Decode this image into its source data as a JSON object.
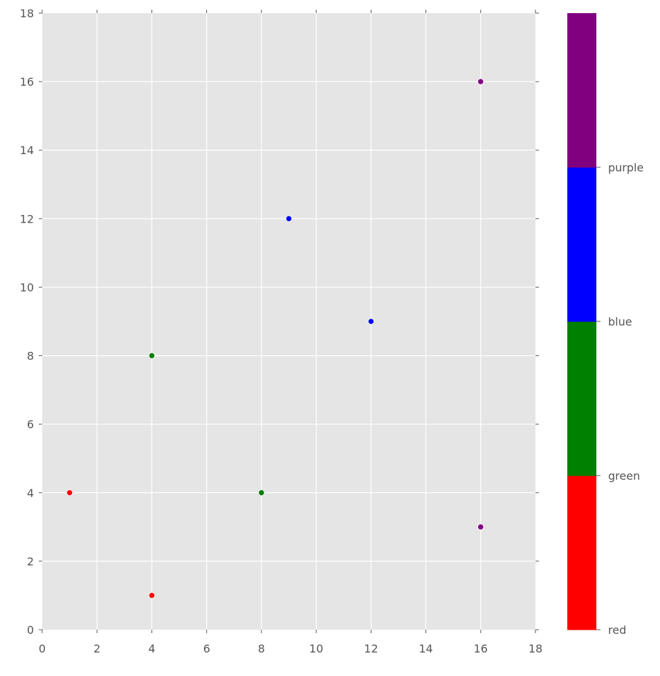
{
  "chart_data": {
    "type": "scatter",
    "title": "",
    "xlabel": "",
    "ylabel": "",
    "xlim": [
      0,
      18
    ],
    "ylim": [
      0,
      18
    ],
    "grid": true,
    "x_ticks": [
      0,
      2,
      4,
      6,
      8,
      10,
      12,
      14,
      16,
      18
    ],
    "y_ticks": [
      0,
      2,
      4,
      6,
      8,
      10,
      12,
      14,
      16,
      18
    ],
    "points": [
      {
        "x": 1,
        "y": 4,
        "category": "red",
        "color": "#ff0000"
      },
      {
        "x": 4,
        "y": 1,
        "category": "red",
        "color": "#ff0000"
      },
      {
        "x": 4,
        "y": 8,
        "category": "green",
        "color": "#008000"
      },
      {
        "x": 8,
        "y": 4,
        "category": "green",
        "color": "#008000"
      },
      {
        "x": 9,
        "y": 12,
        "category": "blue",
        "color": "#0000ff"
      },
      {
        "x": 12,
        "y": 9,
        "category": "blue",
        "color": "#0000ff"
      },
      {
        "x": 16,
        "y": 16,
        "category": "purple",
        "color": "#800080"
      },
      {
        "x": 16,
        "y": 3,
        "category": "purple",
        "color": "#800080"
      }
    ],
    "colorbar": {
      "segments": [
        {
          "label": "red",
          "color": "#ff0000"
        },
        {
          "label": "green",
          "color": "#008000"
        },
        {
          "label": "blue",
          "color": "#0000ff"
        },
        {
          "label": "purple",
          "color": "#800080"
        }
      ],
      "tick_labels": [
        "red",
        "green",
        "blue",
        "purple"
      ]
    },
    "style": {
      "axes_background": "#e5e5e5",
      "grid_color": "#ffffff",
      "tick_color": "#555555"
    }
  }
}
